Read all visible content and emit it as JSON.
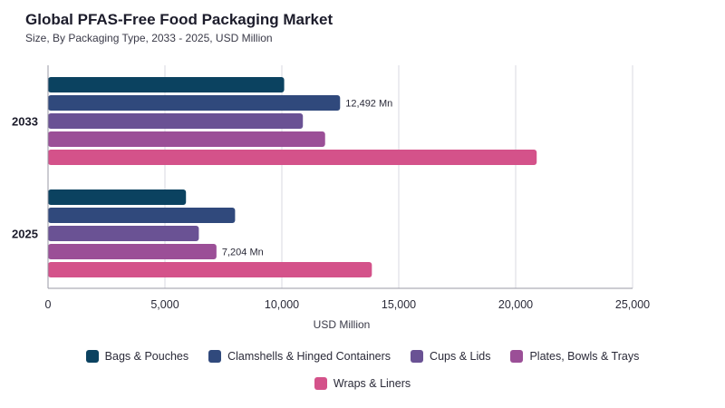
{
  "chart_data": {
    "type": "bar",
    "orientation": "horizontal",
    "title": "Global PFAS-Free Food Packaging Market",
    "subtitle": "Size, By Packaging Type, 2033 - 2025, USD Million",
    "xlabel": "USD Million",
    "ylabel": "",
    "xlim": [
      0,
      25000
    ],
    "xticks": [
      0,
      5000,
      10000,
      15000,
      20000,
      25000
    ],
    "xtick_labels": [
      "0",
      "5,000",
      "10,000",
      "15,000",
      "20,000",
      "25,000"
    ],
    "grid": true,
    "legend_position": "bottom",
    "categories": [
      "2033",
      "2025"
    ],
    "series": [
      {
        "name": "Bags & Pouches",
        "color": "#0b4260",
        "values": [
          10100,
          5900
        ]
      },
      {
        "name": "Clamshells & Hinged Containers",
        "color": "#30497c",
        "values": [
          12492,
          8000
        ]
      },
      {
        "name": "Cups & Lids",
        "color": "#6a5294",
        "values": [
          10900,
          6450
        ]
      },
      {
        "name": "Plates, Bowls & Trays",
        "color": "#9b4f97",
        "values": [
          11850,
          7204
        ]
      },
      {
        "name": "Wraps & Liners",
        "color": "#d4528a",
        "values": [
          20900,
          13850
        ]
      }
    ],
    "annotations": [
      {
        "category": "2033",
        "series": "Clamshells & Hinged Containers",
        "text": "12,492 Mn"
      },
      {
        "category": "2025",
        "series": "Plates, Bowls & Trays",
        "text": "7,204 Mn"
      }
    ]
  }
}
